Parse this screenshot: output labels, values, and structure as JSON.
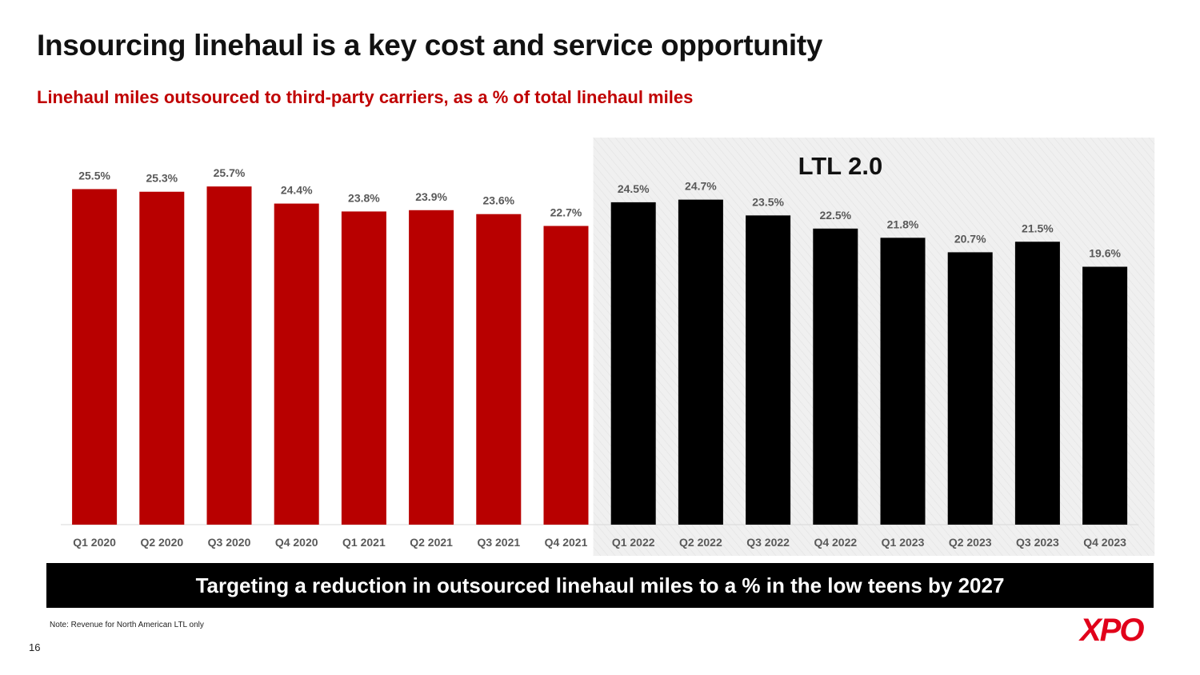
{
  "slide": {
    "title": "Insourcing linehaul is a key cost and service opportunity",
    "subtitle": "Linehaul miles outsourced to third-party carriers, as a % of total linehaul miles",
    "banner": "Targeting a reduction in outsourced linehaul miles to a % in the low teens by 2027",
    "note": "Note: Revenue for North American LTL only",
    "page_number": "16",
    "logo_text": "XPO"
  },
  "colors": {
    "pre_ltl": "#b80000",
    "ltl_2": "#000000",
    "highlight_bg": "#f0f0f0",
    "accent": "#c00000",
    "label": "#595959"
  },
  "chart_data": {
    "type": "bar",
    "title": "Linehaul miles outsourced to third-party carriers, as a % of total linehaul miles",
    "xlabel": "",
    "ylabel": "",
    "ylim": [
      0,
      26.5
    ],
    "unit": "%",
    "categories": [
      "Q1 2020",
      "Q2 2020",
      "Q3 2020",
      "Q4 2020",
      "Q1 2021",
      "Q2 2021",
      "Q3 2021",
      "Q4 2021",
      "Q1 2022",
      "Q2 2022",
      "Q3 2022",
      "Q4 2022",
      "Q1 2023",
      "Q2 2023",
      "Q3 2023",
      "Q4 2023"
    ],
    "values": [
      25.5,
      25.3,
      25.7,
      24.4,
      23.8,
      23.9,
      23.6,
      22.7,
      24.5,
      24.7,
      23.5,
      22.5,
      21.8,
      20.7,
      21.5,
      19.6
    ],
    "data_labels": [
      "25.5%",
      "25.3%",
      "25.7%",
      "24.4%",
      "23.8%",
      "23.9%",
      "23.6%",
      "22.7%",
      "24.5%",
      "24.7%",
      "23.5%",
      "22.5%",
      "21.8%",
      "20.7%",
      "21.5%",
      "19.6%"
    ],
    "groups": [
      "pre",
      "pre",
      "pre",
      "pre",
      "pre",
      "pre",
      "pre",
      "pre",
      "ltl2",
      "ltl2",
      "ltl2",
      "ltl2",
      "ltl2",
      "ltl2",
      "ltl2",
      "ltl2"
    ],
    "highlight_region": {
      "label": "LTL 2.0",
      "from_category": "Q1 2022",
      "to_category": "Q4 2023"
    },
    "grid": false,
    "legend": "none"
  }
}
